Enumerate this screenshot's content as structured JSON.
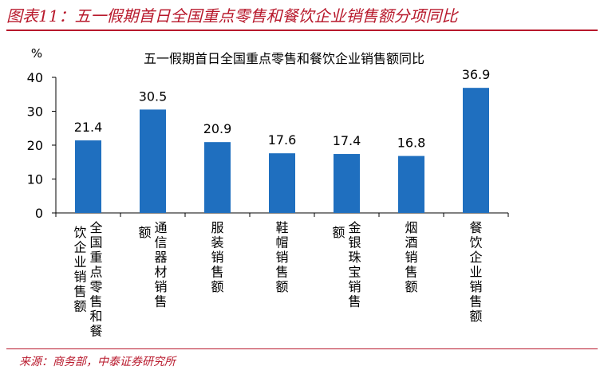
{
  "figure": {
    "title": "图表11：五一假期首日全国重点零售和餐饮企业销售额分项同比",
    "source": "来源：商务部，中泰证券研究所"
  },
  "chart_data": {
    "type": "bar",
    "title": "五一假期首日全国重点零售和餐饮企业销售额同比",
    "ylabel": "%",
    "ylim": [
      0,
      40
    ],
    "yticks": [
      0,
      10,
      20,
      30,
      40
    ],
    "categories": [
      "全国重点零售和餐饮企业销售额",
      "通信器材销售额",
      "服装销售额",
      "鞋帽销售额",
      "金银珠宝销售额",
      "烟酒销售额",
      "餐饮企业销售额"
    ],
    "category_columns": [
      [
        "全国重点零售和餐",
        "饮企业销售额"
      ],
      [
        "通信器材销售",
        "额"
      ],
      [
        "服装销售额"
      ],
      [
        "鞋帽销售额"
      ],
      [
        "金银珠宝销售",
        "额"
      ],
      [
        "烟酒销售额"
      ],
      [
        "餐饮企业销售额"
      ]
    ],
    "values": [
      21.4,
      30.5,
      20.9,
      17.6,
      17.4,
      16.8,
      36.9
    ],
    "value_labels": [
      "21.4",
      "30.5",
      "20.9",
      "17.6",
      "17.4",
      "16.8",
      "36.9"
    ],
    "bar_color": "#1f6fbf",
    "grid": false,
    "legend": "none"
  }
}
